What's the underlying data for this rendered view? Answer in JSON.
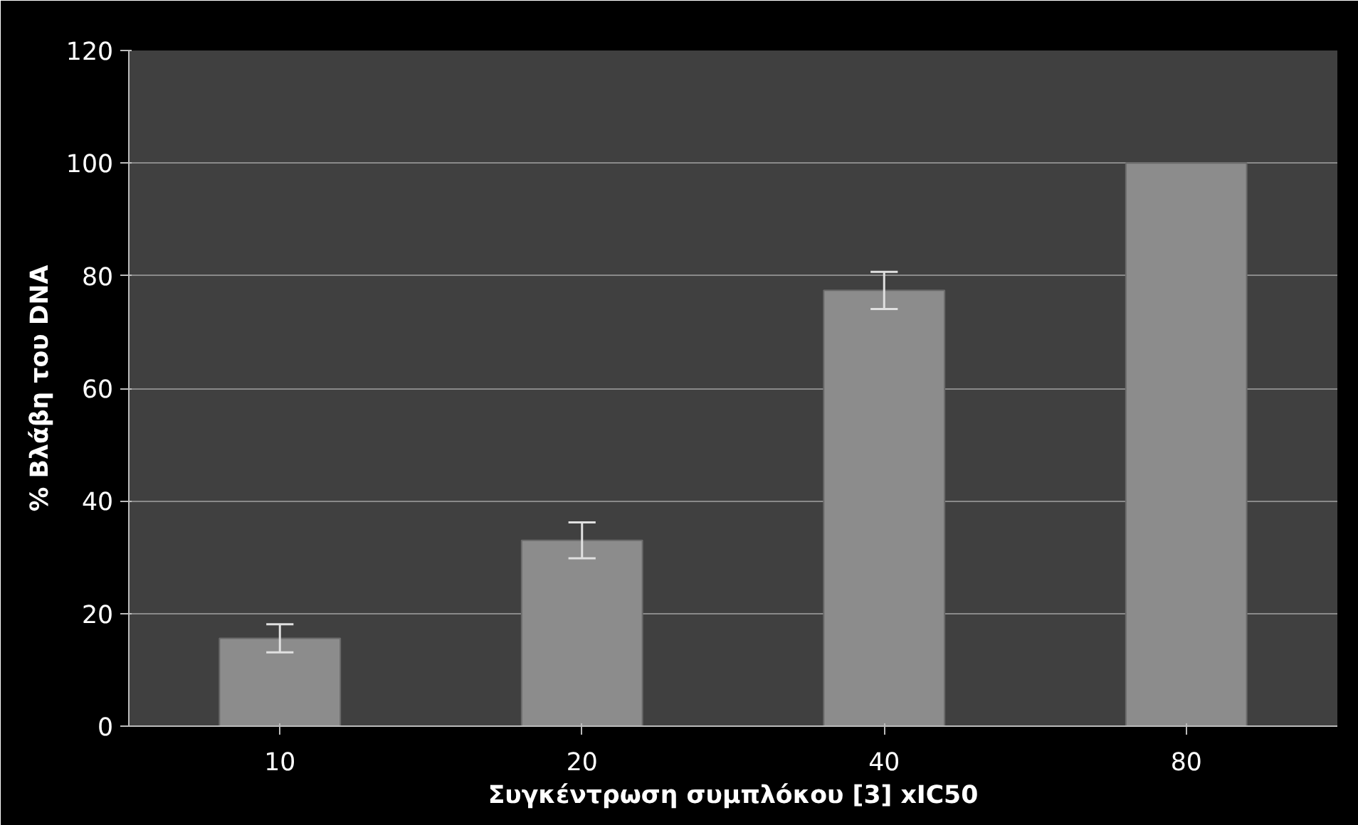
{
  "chart_data": {
    "type": "bar",
    "xlabel": "Συγκέντρωση συμπλόκου [3] xIC50",
    "ylabel": "% Βλάβη του DNA",
    "categories": [
      "10",
      "20",
      "40",
      "80"
    ],
    "values": [
      15.6,
      33,
      77.4,
      100
    ],
    "errors": [
      2.5,
      3.2,
      3.3,
      null
    ],
    "color": "#8c8c8c",
    "ylim": [
      0,
      120
    ],
    "yticks": [
      0,
      20,
      40,
      60,
      80,
      100,
      120
    ],
    "grid": "y"
  }
}
